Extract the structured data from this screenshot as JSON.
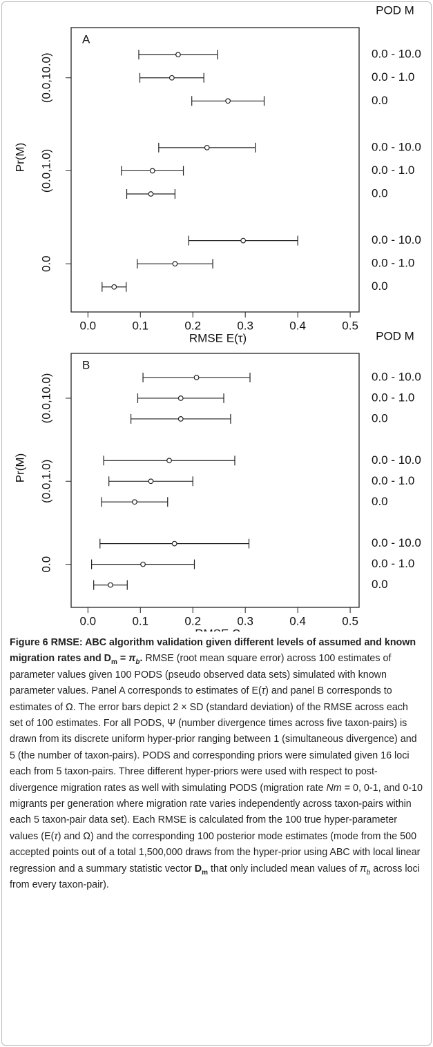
{
  "chart_data": [
    {
      "type": "errorbar",
      "panel": "A",
      "right_title": "POD M",
      "ylabel": "Pr(M)",
      "xlabel": "RMSE  E(τ)",
      "groups": [
        "(0.0,10.0)",
        "(0.0,1.0)",
        "0.0"
      ],
      "categories": [
        "0.0 - 10.0",
        "0.0 - 1.0",
        "0.0",
        "0.0 - 10.0",
        "0.0 - 1.0",
        "0.0",
        "0.0 - 10.0",
        "0.0 - 1.0",
        "0.0"
      ],
      "values": [
        0.172,
        0.16,
        0.267,
        0.227,
        0.123,
        0.12,
        0.296,
        0.166,
        0.05
      ],
      "errors": [
        0.075,
        0.061,
        0.069,
        0.092,
        0.059,
        0.046,
        0.104,
        0.072,
        0.023
      ],
      "xlim": [
        -0.032,
        0.517
      ],
      "xticks": [
        {
          "value": 0,
          "label": "0.0"
        },
        0.1,
        0.2,
        0.3,
        0.4,
        0.5
      ]
    },
    {
      "type": "errorbar",
      "panel": "B",
      "right_title": "POD M",
      "ylabel": "Pr(M)",
      "xlabel": "RMSE  Ω",
      "groups": [
        "(0.0,10.0)",
        "(0.0,1.0)",
        "0.0"
      ],
      "categories": [
        "0.0 - 10.0",
        "0.0 - 1.0",
        "0.0",
        "0.0 - 10.0",
        "0.0 - 1.0",
        "0.0",
        "0.0 - 10.0",
        "0.0 - 1.0",
        "0.0"
      ],
      "values": [
        0.207,
        0.177,
        0.177,
        0.155,
        0.12,
        0.089,
        0.165,
        0.105,
        0.043
      ],
      "errors": [
        0.102,
        0.082,
        0.095,
        0.125,
        0.08,
        0.063,
        0.142,
        0.098,
        0.032
      ],
      "xlim": [
        -0.032,
        0.517
      ],
      "xticks": [
        {
          "value": 0,
          "label": "0.0"
        },
        0.1,
        0.2,
        0.3,
        0.4,
        0.5
      ]
    }
  ],
  "caption": {
    "parts": [
      "Figure 6",
      " RMSE: ABC algorithm validation given different levels of assumed and known migration rates and ",
      "D",
      "m",
      " = ",
      "π",
      "b",
      ".",
      " RMSE (root mean square error) across 100 estimates of parameter values given 100 PODS (pseudo observed data sets) simulated with known parameter values. Panel A corresponds to estimates of E(",
      "τ",
      ") and panel B corresponds to estimates of Ω. The error bars depict 2 × SD (standard deviation) of the RMSE across each set of 100 estimates. For all PODS, Ψ (number divergence times across five taxon-pairs) is drawn from its discrete uniform hyper-prior ranging between 1 (simultaneous divergence) and 5 (the number of taxon-pairs). PODS and corresponding priors were simulated given 16 loci each from 5 taxon-pairs. Three different hyper-priors were used with respect to post-divergence migration rates as well with simulating PODS (migration rate ",
      "Nm",
      " = 0, 0-1, and 0-10 migrants per generation where migration rate varies independently across taxon-pairs within each 5 taxon-pair data set). Each RMSE is calculated from the 100 true hyper-parameter values (E(",
      "τ",
      ") and Ω) and the corresponding 100 posterior mode estimates (mode from the 500 accepted points out of a total 1,500,000 draws from the hyper-prior using ABC with local linear regression and a summary statistic vector ",
      "D",
      "m",
      " that only included mean values of ",
      "π",
      "b",
      " across loci from every taxon-pair)."
    ]
  }
}
